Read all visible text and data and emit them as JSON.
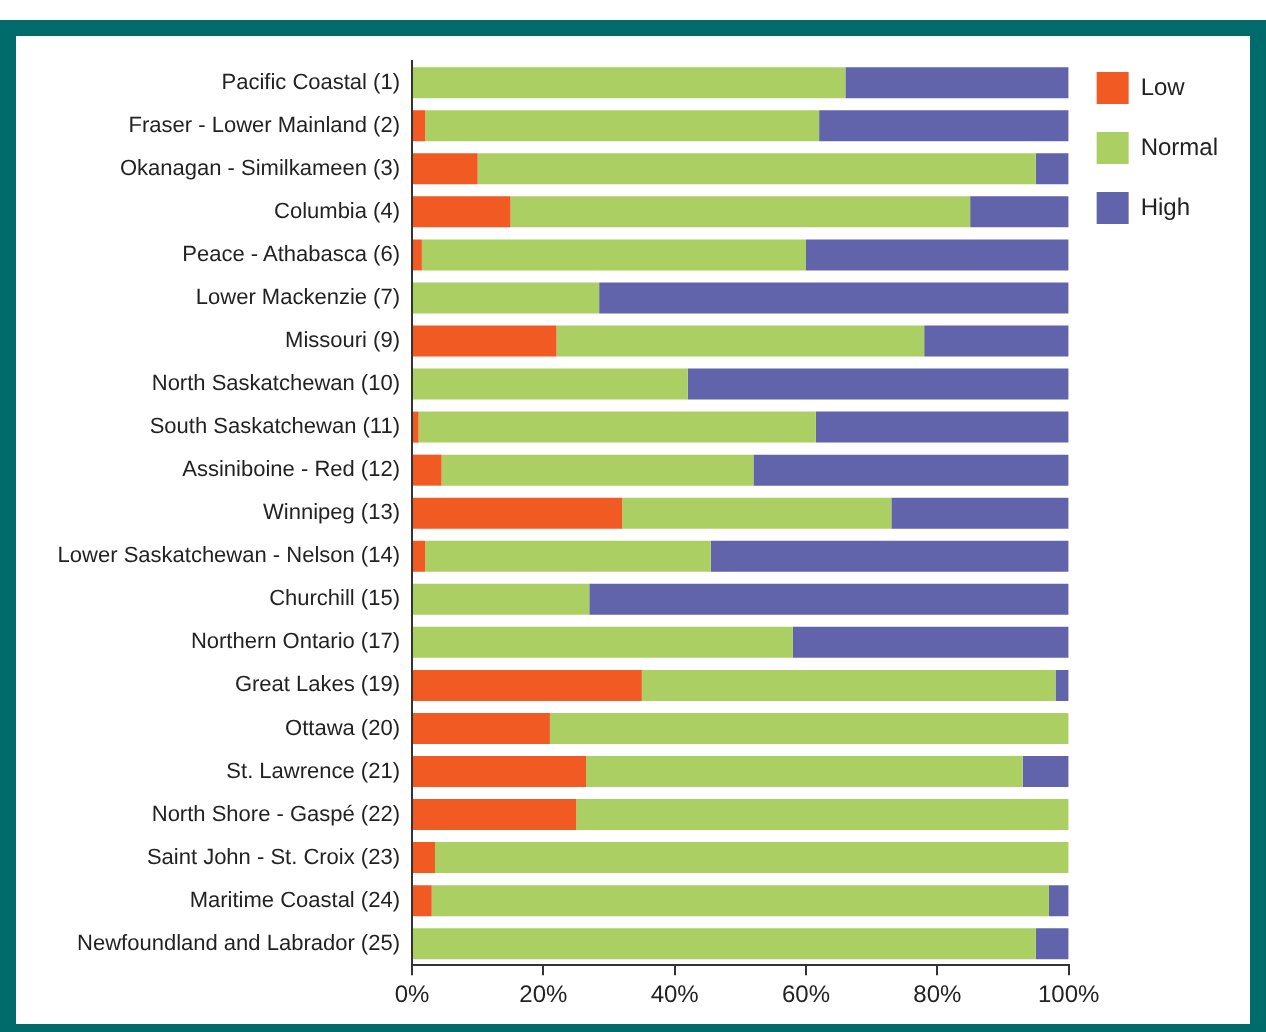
{
  "chart_data": {
    "type": "bar",
    "orientation": "horizontal",
    "stacked": true,
    "categories": [
      "Pacific Coastal (1)",
      "Fraser - Lower Mainland (2)",
      "Okanagan - Similkameen (3)",
      "Columbia (4)",
      "Peace - Athabasca (6)",
      "Lower Mackenzie (7)",
      "Missouri (9)",
      "North Saskatchewan (10)",
      "South Saskatchewan (11)",
      "Assiniboine - Red (12)",
      "Winnipeg (13)",
      "Lower Saskatchewan - Nelson (14)",
      "Churchill (15)",
      "Northern Ontario (17)",
      "Great Lakes (19)",
      "Ottawa (20)",
      "St. Lawrence (21)",
      "North Shore - Gaspé (22)",
      "Saint John - St. Croix (23)",
      "Maritime Coastal (24)",
      "Newfoundland and Labrador (25)"
    ],
    "series": [
      {
        "name": "Low",
        "color": "#f15a22",
        "values": [
          0,
          2,
          10,
          15,
          1.5,
          0,
          22,
          0,
          1,
          4.5,
          32,
          2,
          0,
          0,
          35,
          21,
          26.5,
          25,
          3.5,
          3,
          0
        ]
      },
      {
        "name": "Normal",
        "color": "#abcf62",
        "values": [
          66,
          60,
          85,
          70,
          58.5,
          28.5,
          56,
          42,
          60.5,
          47.5,
          41,
          43.5,
          27,
          58,
          63,
          79,
          66.5,
          75,
          96.5,
          94,
          95
        ]
      },
      {
        "name": "High",
        "color": "#6163ab",
        "values": [
          34,
          38,
          5,
          15,
          40,
          71.5,
          22,
          58,
          38.5,
          48,
          27,
          54.5,
          73,
          42,
          2,
          0,
          7,
          0,
          0,
          3,
          5
        ]
      }
    ],
    "xlim": [
      0,
      100
    ],
    "xticks": [
      {
        "value": 0,
        "label": "0%"
      },
      {
        "value": 20,
        "label": "20%"
      },
      {
        "value": 40,
        "label": "40%"
      },
      {
        "value": 60,
        "label": "60%"
      },
      {
        "value": 80,
        "label": "80%"
      },
      {
        "value": 100,
        "label": "100%"
      }
    ],
    "grid": false,
    "legend": "top right"
  }
}
